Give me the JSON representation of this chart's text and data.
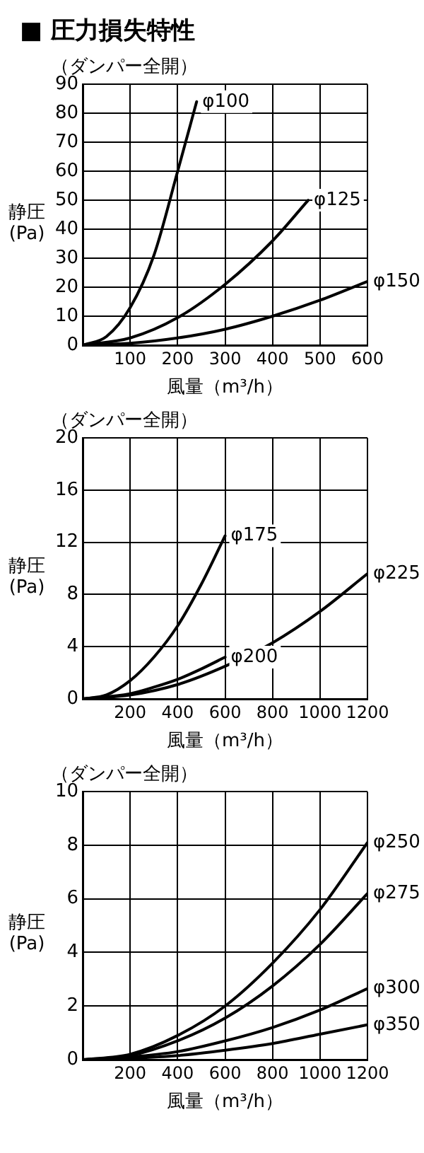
{
  "chart_data": [
    {
      "type": "line",
      "title": "■ 圧力損失特性",
      "subtitle": "（ダンパー全開）",
      "xlabel": "風量（m³/h）",
      "ylabel": "静圧(Pa)",
      "grid": true,
      "legend": false,
      "marker": "none",
      "line_style": "solid",
      "xlim": [
        0,
        600
      ],
      "xticks": [
        100,
        200,
        300,
        400,
        500,
        600
      ],
      "ylim": [
        0,
        90
      ],
      "yticks": [
        0,
        10,
        20,
        30,
        40,
        50,
        60,
        70,
        80,
        90
      ],
      "series": [
        {
          "name": "φ100",
          "color": "#000000",
          "x": [
            0,
            50,
            100,
            150,
            200,
            240
          ],
          "values": [
            0,
            3,
            13,
            31,
            60,
            84
          ]
        },
        {
          "name": "φ125",
          "color": "#000000",
          "x": [
            0,
            100,
            200,
            300,
            400,
            475
          ],
          "values": [
            0,
            2.5,
            9.5,
            21,
            36,
            50
          ]
        },
        {
          "name": "φ150",
          "color": "#000000",
          "x": [
            0,
            100,
            200,
            300,
            400,
            500,
            600
          ],
          "values": [
            0,
            0.7,
            2.5,
            5.5,
            10,
            15.5,
            22
          ]
        }
      ]
    },
    {
      "type": "line",
      "subtitle": "（ダンパー全開）",
      "xlabel": "風量（m³/h）",
      "ylabel": "静圧(Pa)",
      "grid": true,
      "legend": false,
      "marker": "none",
      "line_style": "solid",
      "xlim": [
        0,
        1200
      ],
      "xticks": [
        200,
        400,
        600,
        800,
        1000,
        1200
      ],
      "ylim": [
        0,
        20
      ],
      "yticks": [
        0,
        4,
        8,
        12,
        16,
        20
      ],
      "series": [
        {
          "name": "φ175",
          "color": "#000000",
          "x": [
            0,
            100,
            200,
            300,
            400,
            500,
            600
          ],
          "values": [
            0,
            0.3,
            1.4,
            3.2,
            5.6,
            8.8,
            12.5
          ]
        },
        {
          "name": "φ200",
          "color": "#000000",
          "x": [
            0,
            200,
            300,
            400,
            500,
            600
          ],
          "values": [
            0,
            0.4,
            0.9,
            1.5,
            2.3,
            3.2
          ]
        },
        {
          "name": "φ225",
          "color": "#000000",
          "x": [
            0,
            200,
            400,
            600,
            800,
            1000,
            1200
          ],
          "values": [
            0,
            0.3,
            1.1,
            2.5,
            4.3,
            6.7,
            9.6
          ]
        }
      ]
    },
    {
      "type": "line",
      "subtitle": "（ダンパー全開）",
      "xlabel": "風量（m³/h）",
      "ylabel": "静圧(Pa)",
      "grid": true,
      "legend": false,
      "marker": "none",
      "line_style": "solid",
      "xlim": [
        0,
        1200
      ],
      "xticks": [
        200,
        400,
        600,
        800,
        1000,
        1200
      ],
      "ylim": [
        0,
        10
      ],
      "yticks": [
        0,
        2,
        4,
        6,
        8,
        10
      ],
      "series": [
        {
          "name": "φ250",
          "color": "#000000",
          "x": [
            0,
            200,
            400,
            600,
            800,
            1000,
            1200
          ],
          "values": [
            0,
            0.2,
            0.9,
            2,
            3.6,
            5.6,
            8.1
          ]
        },
        {
          "name": "φ275",
          "color": "#000000",
          "x": [
            0,
            200,
            400,
            600,
            800,
            1000,
            1200
          ],
          "values": [
            0,
            0.15,
            0.7,
            1.55,
            2.75,
            4.3,
            6.2
          ]
        },
        {
          "name": "φ300",
          "color": "#000000",
          "x": [
            0,
            200,
            400,
            600,
            800,
            1000,
            1200
          ],
          "values": [
            0,
            0.1,
            0.3,
            0.7,
            1.2,
            1.85,
            2.65
          ]
        },
        {
          "name": "φ350",
          "color": "#000000",
          "x": [
            0,
            200,
            400,
            600,
            800,
            1000,
            1200
          ],
          "values": [
            0,
            0.05,
            0.15,
            0.35,
            0.6,
            0.95,
            1.3
          ]
        }
      ]
    }
  ]
}
